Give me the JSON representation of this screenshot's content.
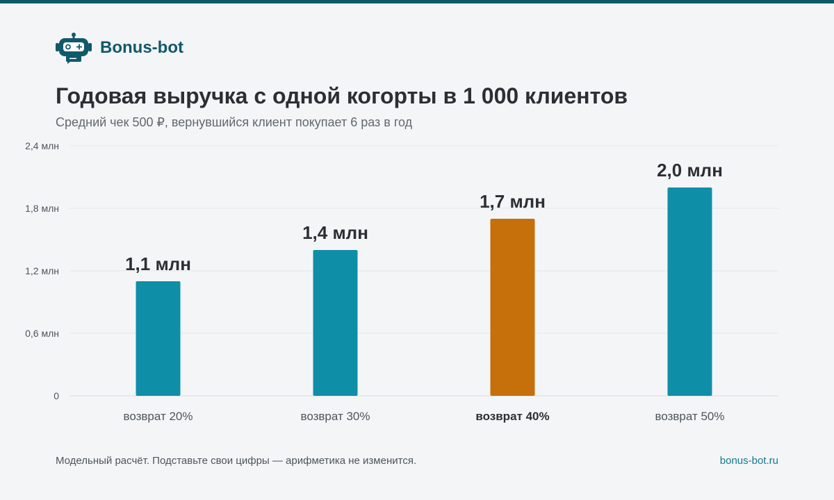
{
  "brand": {
    "name": "Bonus-bot",
    "logo_icon": "robot-icon"
  },
  "title": "Годовая выручка с одной когорты в 1 000 клиентов",
  "subtitle": "Средний чек 500 ₽, вернувшийся клиент покупает 6 раз в год",
  "footer": {
    "note": "Модельный расчёт. Подставьте свои цифры — арифметика не изменится.",
    "site": "bonus-bot.ru"
  },
  "colors": {
    "bar": "#0f8ea8",
    "highlight": "#c5700a",
    "brand": "#11596a"
  },
  "chart_data": {
    "type": "bar",
    "categories": [
      "возврат 20%",
      "возврат 30%",
      "возврат 40%",
      "возврат 50%"
    ],
    "values": [
      1.1,
      1.4,
      1.7,
      2.0
    ],
    "value_labels": [
      "1,1 млн",
      "1,4 млн",
      "1,7 млн",
      "2,0 млн"
    ],
    "highlight_index": 2,
    "ylim": [
      0,
      2.4
    ],
    "yticks": [
      0,
      0.6,
      1.2,
      1.8,
      2.4
    ],
    "ytick_labels": [
      "0",
      "0,6 млн",
      "1,2 млн",
      "1,8 млн",
      "2,4 млн"
    ],
    "grid": true
  }
}
